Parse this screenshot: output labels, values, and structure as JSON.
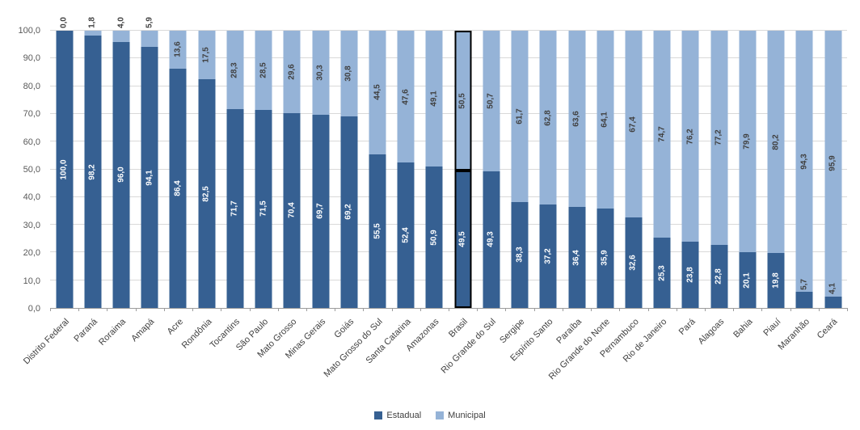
{
  "chart_data": {
    "type": "bar",
    "stacked": true,
    "orientation": "vertical",
    "categories": [
      "Distrito Federal",
      "Paraná",
      "Roraima",
      "Amapá",
      "Acre",
      "Rondônia",
      "Tocantins",
      "São Paulo",
      "Mato Grosso",
      "Minas Gerais",
      "Goiás",
      "Mato Grosso do Sul",
      "Santa Catarina",
      "Amazonas",
      "Brasil",
      "Rio Grande do Sul",
      "Sergipe",
      "Espírito Santo",
      "Paraíba",
      "Rio Grande do Norte",
      "Pernambuco",
      "Rio de Janeiro",
      "Pará",
      "Alagoas",
      "Bahia",
      "Piauí",
      "Maranhão",
      "Ceará"
    ],
    "series": [
      {
        "name": "Estadual",
        "color": "#366092",
        "values": [
          100.0,
          98.2,
          96.0,
          94.1,
          86.4,
          82.5,
          71.7,
          71.5,
          70.4,
          69.7,
          69.2,
          55.5,
          52.4,
          50.9,
          49.5,
          49.3,
          38.3,
          37.2,
          36.4,
          35.9,
          32.6,
          25.3,
          23.8,
          22.8,
          20.1,
          19.8,
          5.7,
          4.1
        ]
      },
      {
        "name": "Municipal",
        "color": "#95B3D7",
        "values": [
          0.0,
          1.8,
          4.0,
          5.9,
          13.6,
          17.5,
          28.3,
          28.5,
          29.6,
          30.3,
          30.8,
          44.5,
          47.6,
          49.1,
          50.5,
          50.7,
          61.7,
          62.8,
          63.6,
          64.1,
          67.4,
          74.7,
          76.2,
          77.2,
          79.9,
          80.2,
          94.3,
          95.9
        ]
      }
    ],
    "highlight_category": "Brasil",
    "highlight_border_color": "#000000",
    "ylim": [
      0,
      100
    ],
    "ytick_step": 10,
    "yticks": [
      0,
      10,
      20,
      30,
      40,
      50,
      60,
      70,
      80,
      90,
      100
    ],
    "ytick_labels": [
      "0,0",
      "10,0",
      "20,0",
      "30,0",
      "40,0",
      "50,0",
      "60,0",
      "70,0",
      "80,0",
      "90,0",
      "100,0"
    ],
    "decimal_separator": ",",
    "grid": true,
    "legend": [
      "Estadual",
      "Municipal"
    ],
    "legend_position": "bottom"
  }
}
